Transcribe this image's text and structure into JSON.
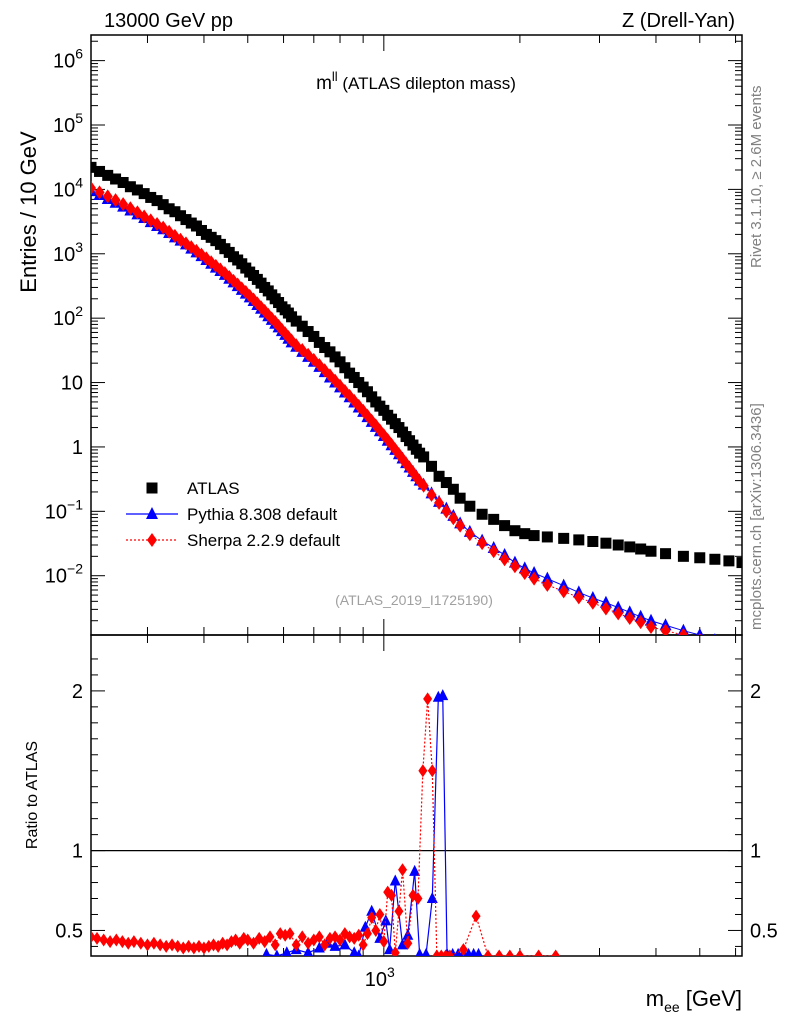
{
  "header": {
    "left": "13000 GeV pp",
    "right": "Z (Drell-Yan)"
  },
  "side_text": {
    "top": "Rivet 3.1.10, ≥ 2.6M events",
    "bottom": "mcplots.cern.ch [arXiv:1306.3436]"
  },
  "chart_data": {
    "type": "scatter",
    "title": "m",
    "title_sup": "ll",
    "title_suffix": " (ATLAS dilepton mass)",
    "watermark": "(ATLAS_2019_I1725190)",
    "xlabel": "m",
    "xlabel_sub": "ee",
    "xlabel_suffix": " [GeV]",
    "ylabel": "Entries / 10 GeV",
    "xlim": [
      225,
      6200
    ],
    "x_scale": "log",
    "x_tick_label": "10",
    "x_tick_label_exp": "3",
    "main": {
      "y_scale": "log",
      "ylim": [
        0.0012,
        2500000
      ],
      "yticks": [
        {
          "base": "10",
          "exp": "6",
          "value": 1000000
        },
        {
          "base": "10",
          "exp": "5",
          "value": 100000
        },
        {
          "base": "10",
          "exp": "4",
          "value": 10000
        },
        {
          "base": "10",
          "exp": "3",
          "value": 1000
        },
        {
          "base": "10",
          "exp": "2",
          "value": 100
        },
        {
          "base": "10",
          "exp": "",
          "value": 10
        },
        {
          "base": "1",
          "exp": "",
          "value": 1
        },
        {
          "base": "10",
          "exp": "−1",
          "value": 0.1
        },
        {
          "base": "10",
          "exp": "−2",
          "value": 0.01
        }
      ],
      "legend_position": "bottom-left",
      "series": [
        {
          "name": "ATLAS",
          "color": "#000000",
          "marker": "square",
          "x": [
            225,
            235,
            245,
            255,
            265,
            275,
            285,
            295,
            305,
            315,
            325,
            335,
            345,
            355,
            365,
            375,
            385,
            395,
            405,
            415,
            425,
            435,
            445,
            455,
            465,
            475,
            485,
            495,
            505,
            515,
            525,
            535,
            545,
            555,
            565,
            575,
            585,
            595,
            605,
            615,
            625,
            640,
            660,
            680,
            700,
            720,
            740,
            760,
            780,
            800,
            820,
            840,
            860,
            880,
            900,
            920,
            940,
            960,
            980,
            1000,
            1020,
            1040,
            1060,
            1080,
            1100,
            1120,
            1140,
            1160,
            1180,
            1200,
            1225,
            1275,
            1325,
            1375,
            1425,
            1475,
            1550,
            1650,
            1750,
            1850,
            1950,
            2050,
            2150,
            2300,
            2500,
            2700,
            2900,
            3100,
            3300,
            3500,
            3700,
            3900,
            4200,
            4600,
            5000,
            5400,
            5800,
            6200
          ],
          "y": [
            22000,
            19000,
            16500,
            14500,
            12800,
            11000,
            9800,
            8600,
            7500,
            6700,
            5800,
            5000,
            4500,
            3900,
            3400,
            3000,
            2700,
            2300,
            2000,
            1800,
            1600,
            1400,
            1200,
            1050,
            900,
            800,
            700,
            600,
            520,
            460,
            400,
            350,
            300,
            265,
            230,
            200,
            175,
            150,
            135,
            120,
            105,
            90,
            75,
            62,
            52,
            42,
            35,
            30,
            25,
            21,
            17,
            14,
            12,
            10,
            8.5,
            7.2,
            6,
            5,
            4.3,
            3.7,
            3.1,
            2.7,
            2.3,
            2,
            1.7,
            1.45,
            1.25,
            1.07,
            0.92,
            0.8,
            0.7,
            0.5,
            0.35,
            0.28,
            0.22,
            0.16,
            0.12,
            0.09,
            0.075,
            0.06,
            0.05,
            0.045,
            0.042,
            0.04,
            0.038,
            0.036,
            0.034,
            0.032,
            0.03,
            0.028,
            0.026,
            0.024,
            0.022,
            0.02,
            0.019,
            0.018,
            0.017,
            0.016
          ],
          "note": ""
        },
        {
          "name": "Pythia 8.308 default",
          "color": "#0000ff",
          "marker": "triangle",
          "x": [
            225,
            235,
            245,
            255,
            265,
            275,
            285,
            295,
            305,
            315,
            325,
            335,
            345,
            355,
            365,
            375,
            385,
            395,
            405,
            415,
            425,
            435,
            445,
            455,
            465,
            475,
            485,
            495,
            505,
            515,
            525,
            535,
            545,
            555,
            565,
            575,
            585,
            595,
            605,
            615,
            625,
            640,
            660,
            680,
            700,
            720,
            740,
            760,
            780,
            800,
            820,
            840,
            860,
            880,
            900,
            920,
            940,
            960,
            980,
            1000,
            1020,
            1040,
            1060,
            1080,
            1100,
            1120,
            1140,
            1160,
            1180,
            1200,
            1225,
            1275,
            1325,
            1375,
            1425,
            1475,
            1550,
            1650,
            1750,
            1850,
            1950,
            2050,
            2150,
            2300,
            2500,
            2700,
            2900,
            3100,
            3300,
            3500,
            3700,
            3900,
            4200,
            4600,
            5000,
            5400,
            5800,
            6200
          ],
          "y": [
            9500,
            8200,
            7100,
            6200,
            5400,
            4700,
            4100,
            3600,
            3100,
            2700,
            2400,
            2100,
            1800,
            1600,
            1400,
            1200,
            1050,
            920,
            800,
            700,
            610,
            540,
            470,
            410,
            360,
            315,
            275,
            240,
            210,
            185,
            160,
            140,
            122,
            107,
            94,
            82,
            72,
            63,
            55,
            48,
            42,
            36,
            30,
            25,
            21,
            17.5,
            14.5,
            12,
            10,
            8.4,
            7,
            5.9,
            4.9,
            4.1,
            3.5,
            2.9,
            2.45,
            2.05,
            1.75,
            1.48,
            1.25,
            1.06,
            0.9,
            0.77,
            0.66,
            0.56,
            0.48,
            0.41,
            0.35,
            0.3,
            0.26,
            0.19,
            0.14,
            0.11,
            0.085,
            0.065,
            0.048,
            0.035,
            0.027,
            0.021,
            0.016,
            0.013,
            0.011,
            0.009,
            0.007,
            0.0055,
            0.0045,
            0.0038,
            0.0032,
            0.0027,
            0.0023,
            0.002,
            0.0017,
            0.0014,
            0.0012,
            0.001,
            0.0009,
            0.0008
          ]
        },
        {
          "name": "Sherpa 2.2.9 default",
          "color": "#ff0000",
          "marker": "diamond",
          "x": [
            225,
            235,
            245,
            255,
            265,
            275,
            285,
            295,
            305,
            315,
            325,
            335,
            345,
            355,
            365,
            375,
            385,
            395,
            405,
            415,
            425,
            435,
            445,
            455,
            465,
            475,
            485,
            495,
            505,
            515,
            525,
            535,
            545,
            555,
            565,
            575,
            585,
            595,
            605,
            615,
            625,
            640,
            660,
            680,
            700,
            720,
            740,
            760,
            780,
            800,
            820,
            840,
            860,
            880,
            900,
            920,
            940,
            960,
            980,
            1000,
            1020,
            1040,
            1060,
            1080,
            1100,
            1120,
            1140,
            1160,
            1180,
            1200,
            1225,
            1275,
            1325,
            1375,
            1425,
            1475,
            1550,
            1650,
            1750,
            1850,
            1950,
            2050,
            2150,
            2300,
            2500,
            2700,
            2900,
            3100,
            3300,
            3500,
            3700,
            3900,
            4200,
            4600,
            5000,
            5400,
            5800,
            6200
          ],
          "y": [
            10500,
            9000,
            7800,
            6800,
            5900,
            5100,
            4400,
            3800,
            3300,
            2900,
            2550,
            2200,
            1900,
            1650,
            1450,
            1270,
            1110,
            970,
            850,
            740,
            650,
            570,
            500,
            435,
            380,
            333,
            290,
            255,
            222,
            195,
            170,
            148,
            130,
            113,
            99,
            87,
            76,
            66,
            58,
            51,
            45,
            38,
            32,
            27,
            22.5,
            18.7,
            15.5,
            12.9,
            10.7,
            8.9,
            7.4,
            6.2,
            5.2,
            4.35,
            3.65,
            3.05,
            2.55,
            2.15,
            1.8,
            1.52,
            1.28,
            1.08,
            0.91,
            0.77,
            0.65,
            0.55,
            0.47,
            0.4,
            0.34,
            0.29,
            0.25,
            0.18,
            0.135,
            0.1,
            0.078,
            0.06,
            0.044,
            0.032,
            0.024,
            0.018,
            0.014,
            0.011,
            0.009,
            0.0072,
            0.0057,
            0.0046,
            0.0038,
            0.0031,
            0.0026,
            0.0022,
            0.0019,
            0.0016,
            0.0014,
            0.0012,
            0.001,
            0.0009,
            0.0008,
            0.0007
          ]
        }
      ]
    },
    "ratio": {
      "ylabel": "Ratio to ATLAS",
      "y_scale": "linear",
      "ylim": [
        0.34,
        2.35
      ],
      "yticks": [
        {
          "label": "2",
          "value": 2
        },
        {
          "label": "1",
          "value": 1
        },
        {
          "label": "0.5",
          "value": 0.5
        }
      ],
      "reference_line": 1,
      "series": [
        {
          "name": "Pythia 8.308 default",
          "color": "#0000ff",
          "marker": "triangle",
          "x": [
            550,
            580,
            610,
            640,
            680,
            720,
            750,
            780,
            820,
            860,
            880,
            910,
            940,
            980,
            1010,
            1030,
            1060,
            1100,
            1130,
            1170,
            1200,
            1240,
            1280,
            1320,
            1350,
            1380,
            1420,
            1460,
            1500,
            1540,
            1580,
            1620
          ],
          "y": [
            0.35,
            0.34,
            0.36,
            0.38,
            0.36,
            0.39,
            0.42,
            0.4,
            0.41,
            0.36,
            0.34,
            0.52,
            0.62,
            0.45,
            0.56,
            0.38,
            0.81,
            0.41,
            0.47,
            0.87,
            0.35,
            0.35,
            0.7,
            1.96,
            1.97,
            0.35,
            0.35,
            0.35,
            0.35,
            0.35,
            0.35,
            0.35
          ]
        },
        {
          "name": "Sherpa 2.2.9 default",
          "color": "#ff0000",
          "marker": "diamond",
          "x": [
            225,
            232,
            240,
            248,
            256,
            264,
            272,
            280,
            290,
            300,
            310,
            320,
            330,
            340,
            350,
            360,
            370,
            380,
            390,
            400,
            410,
            420,
            430,
            440,
            450,
            460,
            470,
            480,
            490,
            500,
            515,
            530,
            545,
            560,
            575,
            590,
            605,
            620,
            640,
            660,
            680,
            700,
            720,
            740,
            760,
            780,
            800,
            820,
            840,
            860,
            880,
            900,
            920,
            940,
            960,
            980,
            1000,
            1020,
            1040,
            1060,
            1080,
            1100,
            1130,
            1160,
            1190,
            1220,
            1250,
            1280,
            1310,
            1340,
            1370,
            1400,
            1500,
            1600,
            1700,
            1800,
            1900,
            2000,
            2200,
            2400
          ],
          "y": [
            0.46,
            0.45,
            0.44,
            0.43,
            0.44,
            0.43,
            0.42,
            0.43,
            0.42,
            0.41,
            0.42,
            0.41,
            0.4,
            0.41,
            0.4,
            0.39,
            0.4,
            0.39,
            0.4,
            0.39,
            0.4,
            0.41,
            0.4,
            0.42,
            0.41,
            0.43,
            0.44,
            0.42,
            0.45,
            0.44,
            0.42,
            0.45,
            0.43,
            0.46,
            0.41,
            0.48,
            0.47,
            0.48,
            0.41,
            0.46,
            0.42,
            0.44,
            0.46,
            0.41,
            0.45,
            0.46,
            0.44,
            0.48,
            0.46,
            0.45,
            0.47,
            0.41,
            0.48,
            0.58,
            0.5,
            0.6,
            0.43,
            0.74,
            0.72,
            0.36,
            0.62,
            0.88,
            0.42,
            0.72,
            0.7,
            1.5,
            1.95,
            1.5,
            0.34,
            0.34,
            0.34,
            0.34,
            0.38,
            0.59,
            0.34,
            0.34,
            0.34,
            0.34,
            0.34,
            0.34
          ]
        }
      ]
    }
  }
}
